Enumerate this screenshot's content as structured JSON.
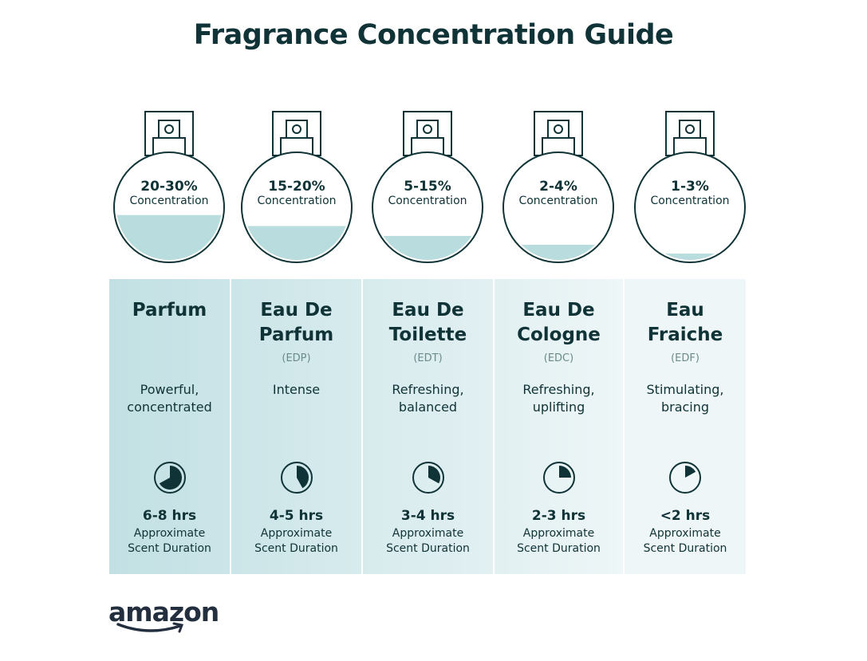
{
  "title": "Fragrance Concentration Guide",
  "colors": {
    "text": "#0f3336",
    "liquid": "#b9dcde",
    "panel_start": "#c2e0e3",
    "panel_end": "#f0f7f8"
  },
  "types": [
    {
      "concentration": "20-30%",
      "concentration_label": "Concentration",
      "fill_level": 0.43,
      "name_lines": [
        "Parfum",
        ""
      ],
      "abbr": "",
      "description_lines": [
        "Powerful,",
        "concentrated"
      ],
      "duration": "6-8 hrs",
      "duration_label_lines": [
        "Approximate",
        "Scent Duration"
      ],
      "clock_fraction": 0.67
    },
    {
      "concentration": "15-20%",
      "concentration_label": "Concentration",
      "fill_level": 0.33,
      "name_lines": [
        "Eau De",
        "Parfum"
      ],
      "abbr": "(EDP)",
      "description_lines": [
        "Intense",
        ""
      ],
      "duration": "4-5 hrs",
      "duration_label_lines": [
        "Approximate",
        "Scent Duration"
      ],
      "clock_fraction": 0.42
    },
    {
      "concentration": "5-15%",
      "concentration_label": "Concentration",
      "fill_level": 0.24,
      "name_lines": [
        "Eau De",
        "Toilette"
      ],
      "abbr": "(EDT)",
      "description_lines": [
        "Refreshing,",
        "balanced"
      ],
      "duration": "3-4 hrs",
      "duration_label_lines": [
        "Approximate",
        "Scent Duration"
      ],
      "clock_fraction": 0.33
    },
    {
      "concentration": "2-4%",
      "concentration_label": "Concentration",
      "fill_level": 0.16,
      "name_lines": [
        "Eau De",
        "Cologne"
      ],
      "abbr": "(EDC)",
      "description_lines": [
        "Refreshing,",
        "uplifting"
      ],
      "duration": "2-3 hrs",
      "duration_label_lines": [
        "Approximate",
        "Scent Duration"
      ],
      "clock_fraction": 0.25
    },
    {
      "concentration": "1-3%",
      "concentration_label": "Concentration",
      "fill_level": 0.08,
      "name_lines": [
        "Eau",
        "Fraiche"
      ],
      "abbr": "(EDF)",
      "description_lines": [
        "Stimulating,",
        "bracing"
      ],
      "duration": "<2 hrs",
      "duration_label_lines": [
        "Approximate",
        "Scent Duration"
      ],
      "clock_fraction": 0.17
    }
  ],
  "logo": "amazon"
}
